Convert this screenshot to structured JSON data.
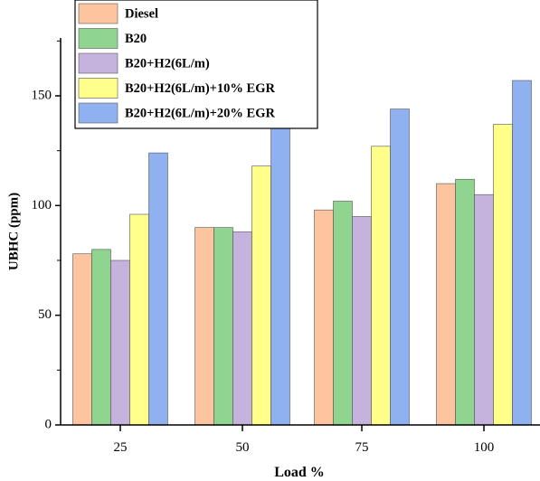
{
  "chart_data": {
    "type": "bar",
    "title": "",
    "xlabel": "Load %",
    "ylabel": "UBHC (ppm)",
    "categories": [
      "25",
      "50",
      "75",
      "100"
    ],
    "ylim": [
      0,
      175
    ],
    "yticks": [
      0,
      50,
      100,
      150
    ],
    "grid": false,
    "legend_position": "top-left",
    "series": [
      {
        "name": "Diesel",
        "color": "#FCC59F",
        "values": [
          78,
          90,
          98,
          110
        ]
      },
      {
        "name": "B20",
        "color": "#8FD48F",
        "values": [
          80,
          90,
          102,
          112
        ]
      },
      {
        "name": "B20+H2(6L/m)",
        "color": "#C5B3DD",
        "values": [
          75,
          88,
          95,
          105
        ]
      },
      {
        "name": "B20+H2(6L/m)+10% EGR",
        "color": "#FFFF8A",
        "values": [
          96,
          118,
          127,
          137
        ]
      },
      {
        "name": "B20+H2(6L/m)+20% EGR",
        "color": "#8FB1F0",
        "values": [
          124,
          138,
          144,
          157
        ]
      }
    ]
  }
}
